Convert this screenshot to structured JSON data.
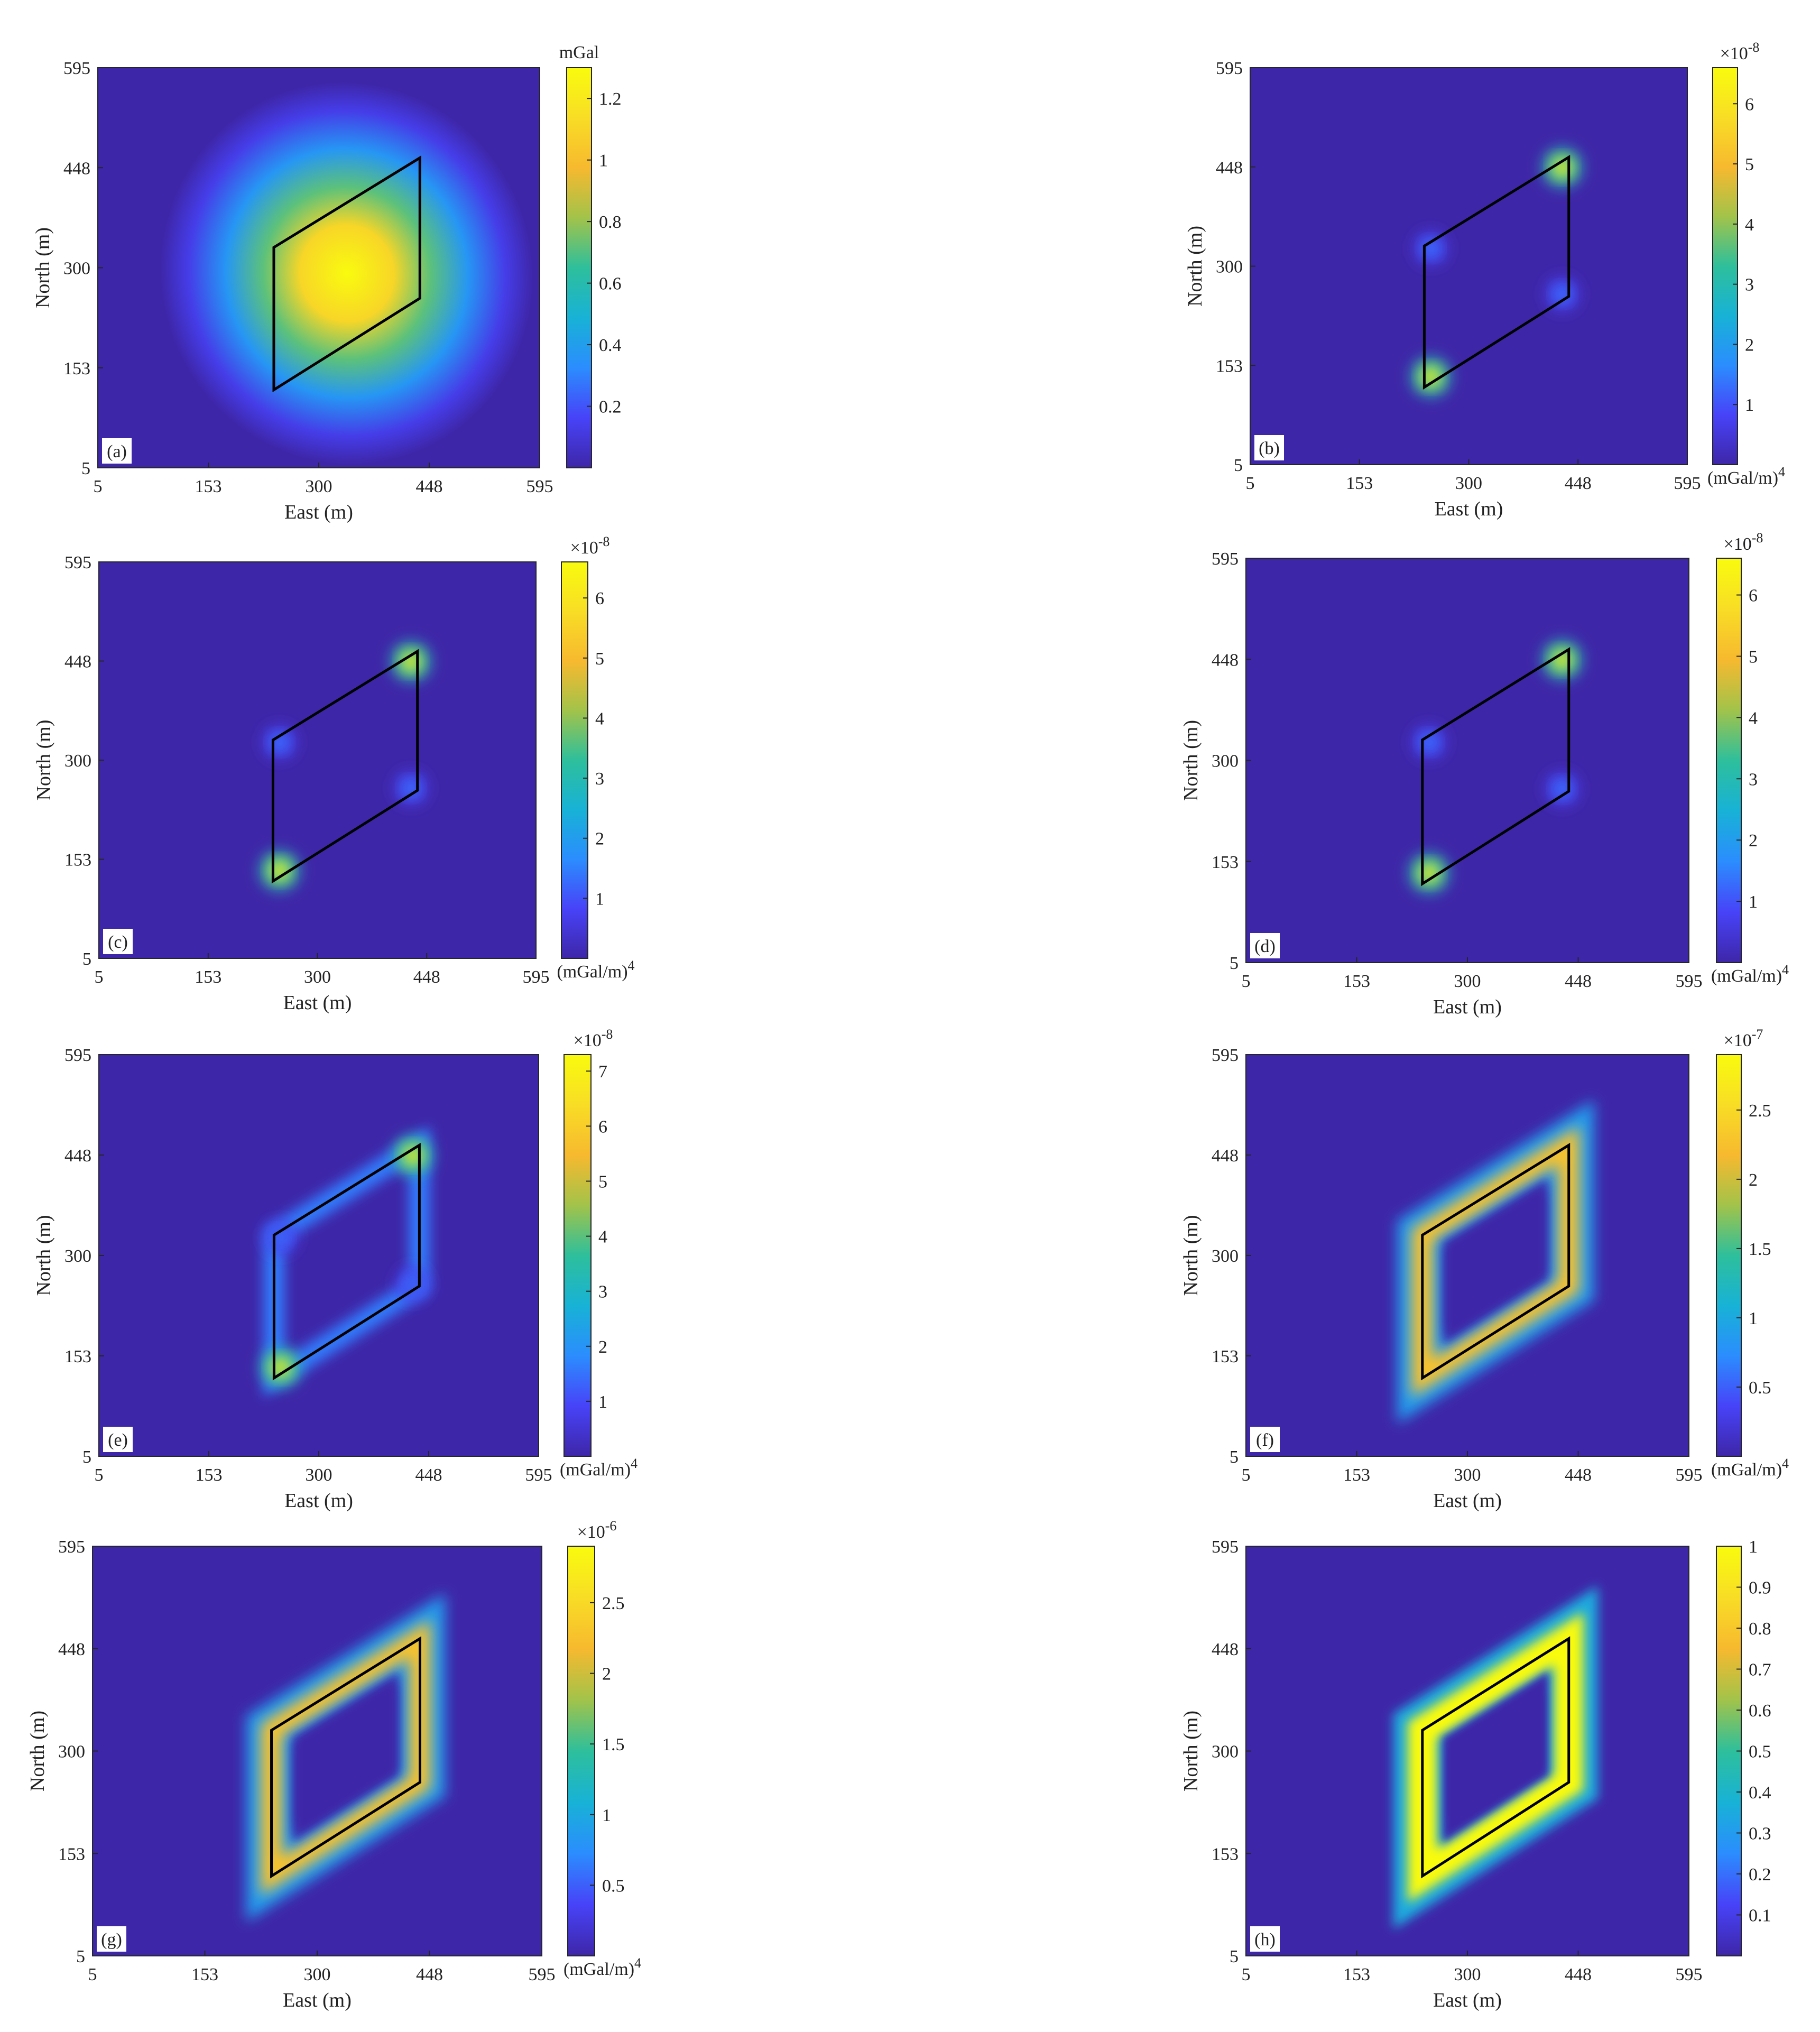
{
  "chart_data": [
    {
      "panel": "(a)",
      "type": "heatmap",
      "xlabel": "East (m)",
      "ylabel": "North (m)",
      "xlim": [
        5,
        595
      ],
      "ylim": [
        5,
        595
      ],
      "xticks": [
        "5",
        "153",
        "300",
        "448",
        "595"
      ],
      "yticks": [
        "5",
        "153",
        "300",
        "448",
        "595"
      ],
      "colorbar": {
        "label": "mGal",
        "multiplier": "",
        "unit": "",
        "min": 0,
        "max": 1.3,
        "ticks": [
          {
            "v": 0.2,
            "t": "0.2"
          },
          {
            "v": 0.4,
            "t": "0.4"
          },
          {
            "v": 0.6,
            "t": "0.6"
          },
          {
            "v": 0.8,
            "t": "0.8"
          },
          {
            "v": 1,
            "t": "1"
          },
          {
            "v": 1.2,
            "t": "1.2"
          }
        ]
      },
      "field": "gravity",
      "outline": "parallelogram",
      "peak": 1.3
    },
    {
      "panel": "(b)",
      "type": "heatmap",
      "xlabel": "East (m)",
      "ylabel": "North (m)",
      "xlim": [
        5,
        595
      ],
      "ylim": [
        5,
        595
      ],
      "xticks": [
        "5",
        "153",
        "300",
        "448",
        "595"
      ],
      "yticks": [
        "5",
        "153",
        "300",
        "448",
        "595"
      ],
      "colorbar": {
        "label": "",
        "multiplier": "×10",
        "exponent": "-8",
        "unit": "(mGal/m)",
        "unit_exponent": "4",
        "min": 0,
        "max": 6.6,
        "ticks": [
          {
            "v": 1,
            "t": "1"
          },
          {
            "v": 2,
            "t": "2"
          },
          {
            "v": 3,
            "t": "3"
          },
          {
            "v": 4,
            "t": "4"
          },
          {
            "v": 5,
            "t": "5"
          },
          {
            "v": 6,
            "t": "6"
          }
        ]
      },
      "field": "corners"
    },
    {
      "panel": "(c)",
      "type": "heatmap",
      "xlabel": "East (m)",
      "ylabel": "North (m)",
      "xlim": [
        5,
        595
      ],
      "ylim": [
        5,
        595
      ],
      "xticks": [
        "5",
        "153",
        "300",
        "448",
        "595"
      ],
      "yticks": [
        "5",
        "153",
        "300",
        "448",
        "595"
      ],
      "colorbar": {
        "label": "",
        "multiplier": "×10",
        "exponent": "-8",
        "unit": "(mGal/m)",
        "unit_exponent": "4",
        "min": 0,
        "max": 6.6,
        "ticks": [
          {
            "v": 1,
            "t": "1"
          },
          {
            "v": 2,
            "t": "2"
          },
          {
            "v": 3,
            "t": "3"
          },
          {
            "v": 4,
            "t": "4"
          },
          {
            "v": 5,
            "t": "5"
          },
          {
            "v": 6,
            "t": "6"
          }
        ]
      },
      "field": "corners"
    },
    {
      "panel": "(d)",
      "type": "heatmap",
      "xlabel": "East (m)",
      "ylabel": "North (m)",
      "xlim": [
        5,
        595
      ],
      "ylim": [
        5,
        595
      ],
      "xticks": [
        "5",
        "153",
        "300",
        "448",
        "595"
      ],
      "yticks": [
        "5",
        "153",
        "300",
        "448",
        "595"
      ],
      "colorbar": {
        "label": "",
        "multiplier": "×10",
        "exponent": "-8",
        "unit": "(mGal/m)",
        "unit_exponent": "4",
        "min": 0,
        "max": 6.6,
        "ticks": [
          {
            "v": 1,
            "t": "1"
          },
          {
            "v": 2,
            "t": "2"
          },
          {
            "v": 3,
            "t": "3"
          },
          {
            "v": 4,
            "t": "4"
          },
          {
            "v": 5,
            "t": "5"
          },
          {
            "v": 6,
            "t": "6"
          }
        ]
      },
      "field": "corners"
    },
    {
      "panel": "(e)",
      "type": "heatmap",
      "xlabel": "East (m)",
      "ylabel": "North (m)",
      "xlim": [
        5,
        595
      ],
      "ylim": [
        5,
        595
      ],
      "xticks": [
        "5",
        "153",
        "300",
        "448",
        "595"
      ],
      "yticks": [
        "5",
        "153",
        "300",
        "448",
        "595"
      ],
      "colorbar": {
        "label": "",
        "multiplier": "×10",
        "exponent": "-8",
        "unit": "(mGal/m)",
        "unit_exponent": "4",
        "min": 0,
        "max": 7.3,
        "ticks": [
          {
            "v": 1,
            "t": "1"
          },
          {
            "v": 2,
            "t": "2"
          },
          {
            "v": 3,
            "t": "3"
          },
          {
            "v": 4,
            "t": "4"
          },
          {
            "v": 5,
            "t": "5"
          },
          {
            "v": 6,
            "t": "6"
          },
          {
            "v": 7,
            "t": "7"
          }
        ]
      },
      "field": "corners-edges"
    },
    {
      "panel": "(f)",
      "type": "heatmap",
      "xlabel": "East (m)",
      "ylabel": "North (m)",
      "xlim": [
        5,
        595
      ],
      "ylim": [
        5,
        595
      ],
      "xticks": [
        "5",
        "153",
        "300",
        "448",
        "595"
      ],
      "yticks": [
        "5",
        "153",
        "300",
        "448",
        "595"
      ],
      "colorbar": {
        "label": "",
        "multiplier": "×10",
        "exponent": "-7",
        "unit": "(mGal/m)",
        "unit_exponent": "4",
        "min": 0,
        "max": 2.9,
        "ticks": [
          {
            "v": 0.5,
            "t": "0.5"
          },
          {
            "v": 1,
            "t": "1"
          },
          {
            "v": 1.5,
            "t": "1.5"
          },
          {
            "v": 2,
            "t": "2"
          },
          {
            "v": 2.5,
            "t": "2.5"
          }
        ]
      },
      "field": "edges"
    },
    {
      "panel": "(g)",
      "type": "heatmap",
      "xlabel": "East (m)",
      "ylabel": "North (m)",
      "xlim": [
        5,
        595
      ],
      "ylim": [
        5,
        595
      ],
      "xticks": [
        "5",
        "153",
        "300",
        "448",
        "595"
      ],
      "yticks": [
        "5",
        "153",
        "300",
        "448",
        "595"
      ],
      "colorbar": {
        "label": "",
        "multiplier": "×10",
        "exponent": "-6",
        "unit": "(mGal/m)",
        "unit_exponent": "4",
        "min": 0,
        "max": 2.9,
        "ticks": [
          {
            "v": 0.5,
            "t": "0.5"
          },
          {
            "v": 1,
            "t": "1"
          },
          {
            "v": 1.5,
            "t": "1.5"
          },
          {
            "v": 2,
            "t": "2"
          },
          {
            "v": 2.5,
            "t": "2.5"
          }
        ]
      },
      "field": "edges"
    },
    {
      "panel": "(h)",
      "type": "heatmap",
      "xlabel": "East (m)",
      "ylabel": "North (m)",
      "xlim": [
        5,
        595
      ],
      "ylim": [
        5,
        595
      ],
      "xticks": [
        "5",
        "153",
        "300",
        "448",
        "595"
      ],
      "yticks": [
        "5",
        "153",
        "300",
        "448",
        "595"
      ],
      "colorbar": {
        "label": "",
        "multiplier": "",
        "unit": "",
        "min": 0,
        "max": 1,
        "ticks": [
          {
            "v": 0.1,
            "t": "0.1"
          },
          {
            "v": 0.2,
            "t": "0.2"
          },
          {
            "v": 0.3,
            "t": "0.3"
          },
          {
            "v": 0.4,
            "t": "0.4"
          },
          {
            "v": 0.5,
            "t": "0.5"
          },
          {
            "v": 0.6,
            "t": "0.6"
          },
          {
            "v": 0.7,
            "t": "0.7"
          },
          {
            "v": 0.8,
            "t": "0.8"
          },
          {
            "v": 0.9,
            "t": "0.9"
          },
          {
            "v": 1,
            "t": "1"
          }
        ]
      },
      "field": "edges-strong"
    }
  ],
  "outline": {
    "vertices_m": [
      [
        240,
        120
      ],
      [
        240,
        330
      ],
      [
        435,
        462
      ],
      [
        435,
        255
      ]
    ],
    "color": "#000000"
  },
  "colormap": [
    "#3e26a8",
    "#4743f8",
    "#2b8dfe",
    "#18b2d6",
    "#2ebf9b",
    "#a2c34a",
    "#f7b92f",
    "#f8dd25",
    "#f9fb0e"
  ]
}
